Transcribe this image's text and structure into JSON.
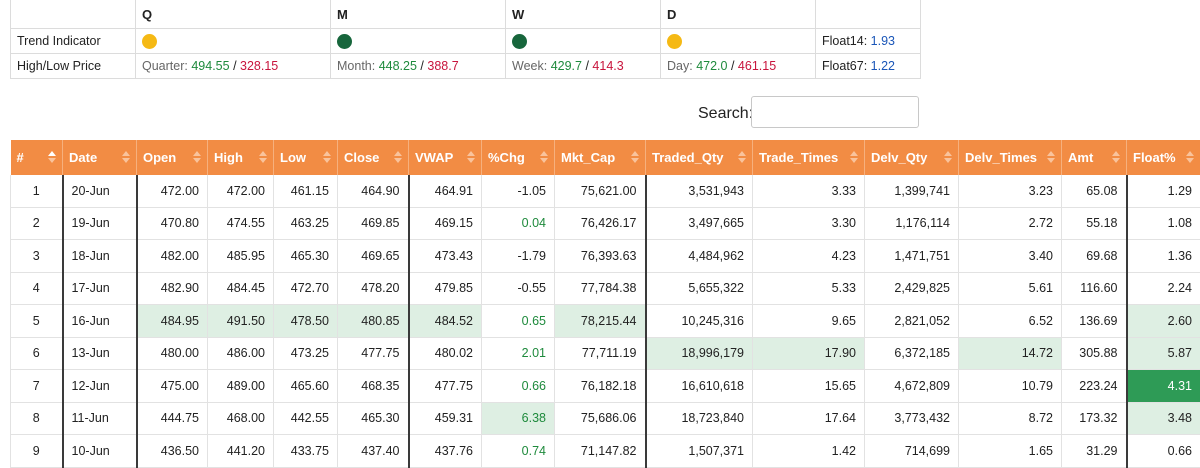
{
  "summary": {
    "periods": [
      "Q",
      "M",
      "W",
      "D"
    ],
    "trend_label": "Trend Indicator",
    "trend_colors": [
      "#f5b914",
      "#17663c",
      "#17663c",
      "#f5b914"
    ],
    "hl_label": "High/Low Price",
    "hl": [
      {
        "label": "Quarter:",
        "high": "494.55",
        "low": "328.15"
      },
      {
        "label": "Month:",
        "high": "448.25",
        "low": "388.7"
      },
      {
        "label": "Week:",
        "high": "429.7",
        "low": "414.3"
      },
      {
        "label": "Day:",
        "high": "472.0",
        "low": "461.15"
      }
    ],
    "sep": "/",
    "float14_label": "Float14:",
    "float14_value": "1.93",
    "float67_label": "Float67:",
    "float67_value": "1.22"
  },
  "search": {
    "label": "Search:",
    "value": ""
  },
  "table": {
    "columns": [
      "#",
      "Date",
      "Open",
      "High",
      "Low",
      "Close",
      "VWAP",
      "%Chg",
      "Mkt_Cap",
      "Traded_Qty",
      "Trade_Times",
      "Delv_Qty",
      "Delv_Times",
      "Amt",
      "Float%"
    ],
    "rows": [
      [
        "1",
        "20-Jun",
        "472.00",
        "472.00",
        "461.15",
        "464.90",
        "464.91",
        "-1.05",
        "75,621.00",
        "3,531,943",
        "3.33",
        "1,399,741",
        "3.23",
        "65.08",
        "1.29"
      ],
      [
        "2",
        "19-Jun",
        "470.80",
        "474.55",
        "463.25",
        "469.85",
        "469.15",
        "0.04",
        "76,426.17",
        "3,497,665",
        "3.30",
        "1,176,114",
        "2.72",
        "55.18",
        "1.08"
      ],
      [
        "3",
        "18-Jun",
        "482.00",
        "485.95",
        "465.30",
        "469.65",
        "473.43",
        "-1.79",
        "76,393.63",
        "4,484,962",
        "4.23",
        "1,471,751",
        "3.40",
        "69.68",
        "1.36"
      ],
      [
        "4",
        "17-Jun",
        "482.90",
        "484.45",
        "472.70",
        "478.20",
        "479.85",
        "-0.55",
        "77,784.38",
        "5,655,322",
        "5.33",
        "2,429,825",
        "5.61",
        "116.60",
        "2.24"
      ],
      [
        "5",
        "16-Jun",
        "484.95",
        "491.50",
        "478.50",
        "480.85",
        "484.52",
        "0.65",
        "78,215.44",
        "10,245,316",
        "9.65",
        "2,821,052",
        "6.52",
        "136.69",
        "2.60"
      ],
      [
        "6",
        "13-Jun",
        "480.00",
        "486.00",
        "473.25",
        "477.75",
        "480.02",
        "2.01",
        "77,711.19",
        "18,996,179",
        "17.90",
        "6,372,185",
        "14.72",
        "305.88",
        "5.87"
      ],
      [
        "7",
        "12-Jun",
        "475.00",
        "489.00",
        "465.60",
        "468.35",
        "477.75",
        "0.66",
        "76,182.18",
        "16,610,618",
        "15.65",
        "4,672,809",
        "10.79",
        "223.24",
        "4.31"
      ],
      [
        "8",
        "11-Jun",
        "444.75",
        "468.00",
        "442.55",
        "465.30",
        "459.31",
        "6.38",
        "75,686.06",
        "18,723,840",
        "17.64",
        "3,773,432",
        "8.72",
        "173.32",
        "3.48"
      ],
      [
        "9",
        "10-Jun",
        "436.50",
        "441.20",
        "433.75",
        "437.40",
        "437.76",
        "0.74",
        "71,147.82",
        "1,507,371",
        "1.42",
        "714,699",
        "1.65",
        "31.29",
        "0.66"
      ]
    ],
    "highlight_light": [
      [
        4,
        2
      ],
      [
        4,
        3
      ],
      [
        4,
        4
      ],
      [
        4,
        5
      ],
      [
        4,
        6
      ],
      [
        4,
        8
      ],
      [
        4,
        14
      ],
      [
        5,
        9
      ],
      [
        5,
        10
      ],
      [
        5,
        12
      ],
      [
        5,
        14
      ],
      [
        6,
        14
      ],
      [
        7,
        7
      ],
      [
        7,
        14
      ]
    ],
    "highlight_dark": [
      [
        6,
        14
      ]
    ]
  }
}
